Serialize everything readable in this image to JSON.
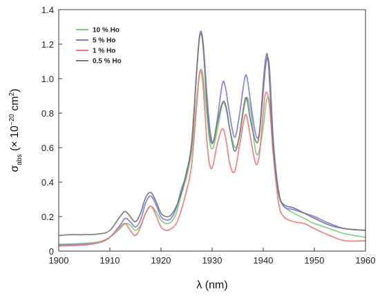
{
  "chart_data": {
    "type": "line",
    "title": "",
    "xlabel": "λ (nm)",
    "ylabel": "σabs (× 10−20 cm2)",
    "xlim": [
      1900,
      1960
    ],
    "ylim": [
      0,
      1.4
    ],
    "xticks": [
      "1900",
      "1910",
      "1920",
      "1930",
      "1940",
      "1950",
      "1960"
    ],
    "yticks": [
      "0",
      "0.2",
      "0.4",
      "0.6",
      "0.8",
      "1.0",
      "1.2",
      "1.4"
    ],
    "grid": false,
    "legend_position": "top-left",
    "series": [
      {
        "name": "10 % Ho",
        "color": "#7ccc7c",
        "points": [
          [
            1900,
            0.04
          ],
          [
            1905,
            0.045
          ],
          [
            1908,
            0.055
          ],
          [
            1910,
            0.08
          ],
          [
            1912,
            0.13
          ],
          [
            1913,
            0.16
          ],
          [
            1914,
            0.15
          ],
          [
            1915,
            0.12
          ],
          [
            1916,
            0.15
          ],
          [
            1917,
            0.22
          ],
          [
            1918,
            0.26
          ],
          [
            1919,
            0.23
          ],
          [
            1920,
            0.18
          ],
          [
            1921,
            0.16
          ],
          [
            1922,
            0.17
          ],
          [
            1923,
            0.22
          ],
          [
            1924,
            0.33
          ],
          [
            1925,
            0.43
          ],
          [
            1926,
            0.58
          ],
          [
            1927,
            0.88
          ],
          [
            1927.6,
            1.04
          ],
          [
            1928.2,
            1.02
          ],
          [
            1929,
            0.78
          ],
          [
            1929.6,
            0.62
          ],
          [
            1930.2,
            0.6
          ],
          [
            1931,
            0.7
          ],
          [
            1932,
            0.85
          ],
          [
            1932.7,
            0.83
          ],
          [
            1933.5,
            0.7
          ],
          [
            1934.5,
            0.6
          ],
          [
            1935.3,
            0.66
          ],
          [
            1936.3,
            0.84
          ],
          [
            1936.9,
            0.89
          ],
          [
            1937.6,
            0.8
          ],
          [
            1938.5,
            0.58
          ],
          [
            1939.2,
            0.58
          ],
          [
            1940,
            0.72
          ],
          [
            1940.7,
            0.88
          ],
          [
            1941.3,
            0.85
          ],
          [
            1942,
            0.55
          ],
          [
            1943,
            0.33
          ],
          [
            1944,
            0.26
          ],
          [
            1946,
            0.22
          ],
          [
            1948,
            0.19
          ],
          [
            1950,
            0.16
          ],
          [
            1953,
            0.13
          ],
          [
            1956,
            0.1
          ],
          [
            1960,
            0.08
          ]
        ]
      },
      {
        "name": "5 % Ho",
        "color": "#7a7ae8",
        "points": [
          [
            1900,
            0.035
          ],
          [
            1905,
            0.04
          ],
          [
            1908,
            0.05
          ],
          [
            1910,
            0.08
          ],
          [
            1912,
            0.15
          ],
          [
            1913,
            0.19
          ],
          [
            1914,
            0.17
          ],
          [
            1915,
            0.14
          ],
          [
            1916,
            0.18
          ],
          [
            1917,
            0.28
          ],
          [
            1918,
            0.32
          ],
          [
            1919,
            0.27
          ],
          [
            1920,
            0.2
          ],
          [
            1921,
            0.18
          ],
          [
            1922,
            0.19
          ],
          [
            1923,
            0.25
          ],
          [
            1924,
            0.36
          ],
          [
            1925,
            0.45
          ],
          [
            1926,
            0.63
          ],
          [
            1927,
            1.05
          ],
          [
            1927.6,
            1.26
          ],
          [
            1928.2,
            1.22
          ],
          [
            1929,
            0.9
          ],
          [
            1929.6,
            0.7
          ],
          [
            1930.2,
            0.63
          ],
          [
            1931,
            0.76
          ],
          [
            1932,
            0.97
          ],
          [
            1932.6,
            0.95
          ],
          [
            1933.4,
            0.8
          ],
          [
            1934.4,
            0.66
          ],
          [
            1935.3,
            0.78
          ],
          [
            1936.3,
            0.99
          ],
          [
            1936.8,
            1.01
          ],
          [
            1937.5,
            0.87
          ],
          [
            1938.5,
            0.68
          ],
          [
            1939.2,
            0.68
          ],
          [
            1940,
            0.92
          ],
          [
            1940.6,
            1.1
          ],
          [
            1941.2,
            1.07
          ],
          [
            1942,
            0.63
          ],
          [
            1943,
            0.35
          ],
          [
            1944,
            0.26
          ],
          [
            1946,
            0.24
          ],
          [
            1948,
            0.22
          ],
          [
            1950,
            0.2
          ],
          [
            1953,
            0.16
          ],
          [
            1956,
            0.13
          ],
          [
            1960,
            0.12
          ]
        ]
      },
      {
        "name": "1 % Ho",
        "color": "#f07878",
        "points": [
          [
            1900,
            0.03
          ],
          [
            1905,
            0.035
          ],
          [
            1908,
            0.05
          ],
          [
            1910,
            0.08
          ],
          [
            1912,
            0.14
          ],
          [
            1913,
            0.16
          ],
          [
            1914,
            0.12
          ],
          [
            1915,
            0.09
          ],
          [
            1916,
            0.14
          ],
          [
            1917,
            0.22
          ],
          [
            1918,
            0.26
          ],
          [
            1919,
            0.21
          ],
          [
            1920,
            0.14
          ],
          [
            1921,
            0.12
          ],
          [
            1922,
            0.13
          ],
          [
            1923,
            0.16
          ],
          [
            1924,
            0.24
          ],
          [
            1925,
            0.35
          ],
          [
            1926,
            0.5
          ],
          [
            1927,
            0.85
          ],
          [
            1927.6,
            1.04
          ],
          [
            1928.2,
            0.97
          ],
          [
            1929,
            0.63
          ],
          [
            1929.6,
            0.49
          ],
          [
            1930.2,
            0.5
          ],
          [
            1931,
            0.62
          ],
          [
            1932,
            0.71
          ],
          [
            1932.7,
            0.65
          ],
          [
            1933.5,
            0.5
          ],
          [
            1934.4,
            0.46
          ],
          [
            1935.3,
            0.6
          ],
          [
            1936.3,
            0.77
          ],
          [
            1936.8,
            0.78
          ],
          [
            1937.5,
            0.66
          ],
          [
            1938.5,
            0.51
          ],
          [
            1939.2,
            0.55
          ],
          [
            1940,
            0.8
          ],
          [
            1940.5,
            0.92
          ],
          [
            1941.2,
            0.85
          ],
          [
            1942,
            0.55
          ],
          [
            1943,
            0.28
          ],
          [
            1944,
            0.2
          ],
          [
            1946,
            0.17
          ],
          [
            1948,
            0.16
          ],
          [
            1950,
            0.13
          ],
          [
            1953,
            0.09
          ],
          [
            1956,
            0.06
          ],
          [
            1960,
            0.06
          ]
        ]
      },
      {
        "name": "0.5 % Ho",
        "color": "#777777",
        "points": [
          [
            1900,
            0.09
          ],
          [
            1902,
            0.095
          ],
          [
            1905,
            0.095
          ],
          [
            1908,
            0.1
          ],
          [
            1910,
            0.12
          ],
          [
            1912,
            0.2
          ],
          [
            1913,
            0.23
          ],
          [
            1914,
            0.2
          ],
          [
            1915,
            0.17
          ],
          [
            1916,
            0.22
          ],
          [
            1917,
            0.31
          ],
          [
            1918,
            0.34
          ],
          [
            1919,
            0.29
          ],
          [
            1920,
            0.22
          ],
          [
            1921,
            0.2
          ],
          [
            1922,
            0.21
          ],
          [
            1923,
            0.26
          ],
          [
            1924,
            0.34
          ],
          [
            1925,
            0.46
          ],
          [
            1926,
            0.62
          ],
          [
            1927,
            1.05
          ],
          [
            1927.6,
            1.25
          ],
          [
            1928.2,
            1.2
          ],
          [
            1929,
            0.85
          ],
          [
            1929.6,
            0.66
          ],
          [
            1930.2,
            0.63
          ],
          [
            1931,
            0.74
          ],
          [
            1932,
            0.86
          ],
          [
            1932.7,
            0.84
          ],
          [
            1933.5,
            0.7
          ],
          [
            1934.4,
            0.58
          ],
          [
            1935.3,
            0.66
          ],
          [
            1936.3,
            0.86
          ],
          [
            1936.8,
            0.88
          ],
          [
            1937.5,
            0.76
          ],
          [
            1938.5,
            0.64
          ],
          [
            1939.2,
            0.67
          ],
          [
            1940,
            0.97
          ],
          [
            1940.5,
            1.12
          ],
          [
            1941,
            1.09
          ],
          [
            1942,
            0.6
          ],
          [
            1943,
            0.34
          ],
          [
            1944,
            0.27
          ],
          [
            1946,
            0.25
          ],
          [
            1948,
            0.22
          ],
          [
            1950,
            0.19
          ],
          [
            1953,
            0.15
          ],
          [
            1956,
            0.13
          ],
          [
            1960,
            0.12
          ]
        ]
      }
    ]
  }
}
